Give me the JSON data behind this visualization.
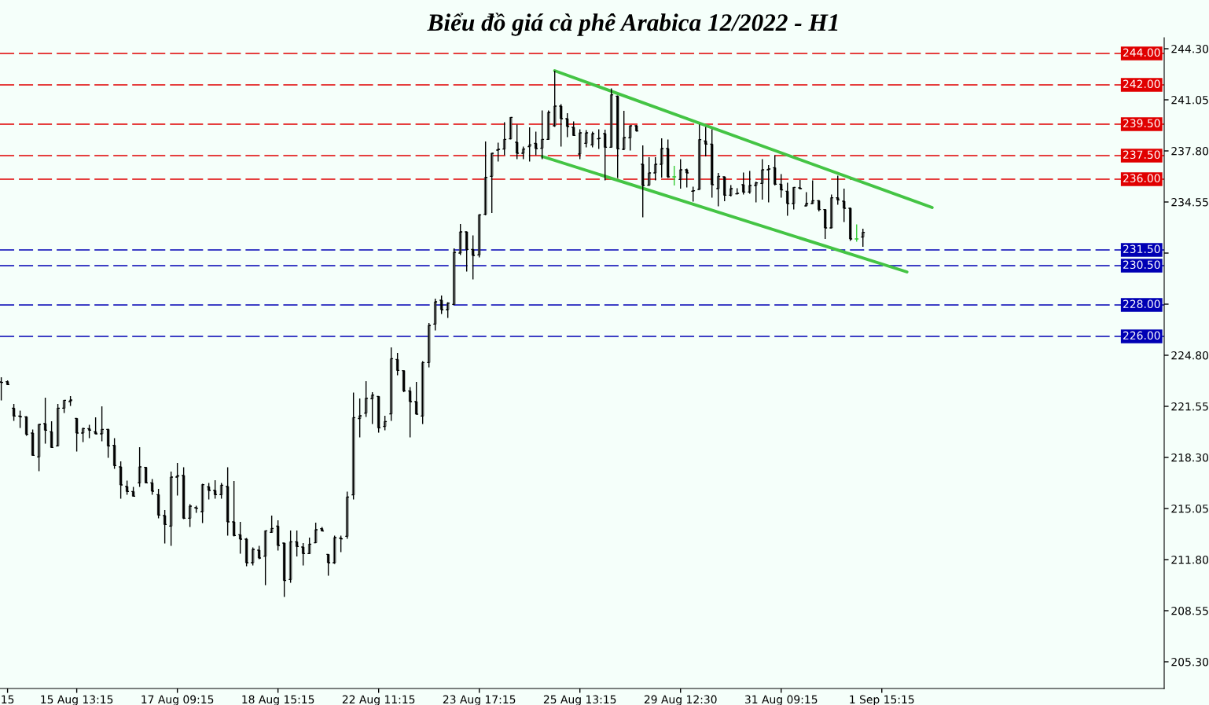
{
  "chart_data": {
    "type": "candlestick",
    "title": "Biểu đồ giá cà phê Arabica 12/2022 - H1",
    "categories": [
      null,
      "15",
      null,
      null,
      null,
      null,
      null,
      null,
      null,
      null,
      null,
      null,
      "15 Aug 13:15",
      null,
      null,
      null,
      null,
      null,
      null,
      null,
      null,
      null,
      null,
      null,
      null,
      null,
      null,
      null,
      "17 Aug 09:15",
      null,
      null,
      null,
      null,
      null,
      null,
      null,
      null,
      null,
      null,
      null,
      null,
      null,
      null,
      null,
      "18 Aug 15:15",
      null,
      null,
      null,
      null,
      null,
      null,
      null,
      null,
      null,
      null,
      null,
      null,
      null,
      null,
      null,
      "22 Aug 11:15",
      null,
      null,
      null,
      null,
      null,
      null,
      null,
      null,
      null,
      null,
      null,
      null,
      null,
      null,
      null,
      "23 Aug 17:15",
      null,
      null,
      null,
      null,
      null,
      null,
      null,
      null,
      null,
      null,
      null,
      null,
      null,
      null,
      null,
      "25 Aug 13:15",
      null,
      null,
      null,
      null,
      null,
      null,
      null,
      null,
      null,
      null,
      null,
      null,
      null,
      null,
      null,
      "29 Aug 12:30",
      null,
      null,
      null,
      null,
      null,
      null,
      null,
      null,
      null,
      null,
      null,
      null,
      null,
      null,
      null,
      "31 Aug 09:15",
      null,
      null,
      null,
      null,
      null,
      null,
      null,
      null,
      null,
      null,
      null,
      null,
      null,
      null,
      null,
      "1 Sep 15:15",
      null,
      null,
      null,
      null,
      null,
      null,
      null,
      null,
      null,
      null,
      null,
      null,
      null,
      null,
      null,
      null,
      null,
      null,
      null,
      null,
      null,
      null,
      null,
      null,
      null,
      null,
      null,
      null,
      null,
      null,
      null,
      null,
      null,
      null,
      null,
      null,
      null,
      null,
      null,
      null,
      null,
      null,
      null,
      null
    ],
    "ohlc": [
      [
        223.1,
        223.4,
        221.93,
        223.07
      ],
      [
        223.12,
        223.2,
        222.93,
        222.93
      ],
      [
        221.43,
        221.7,
        220.62,
        220.93
      ],
      [
        220.93,
        221.28,
        220.17,
        220.88
      ],
      [
        220.88,
        220.93,
        219.68,
        219.77
      ],
      [
        219.85,
        220.07,
        218.43,
        218.43
      ],
      [
        218.33,
        220.43,
        217.42,
        220.4
      ],
      [
        220.45,
        222.1,
        219.17,
        220.03
      ],
      [
        219.93,
        220.6,
        218.93,
        218.93
      ],
      [
        219.03,
        221.7,
        219.02,
        221.43
      ],
      [
        221.43,
        221.93,
        221.12,
        221.93
      ],
      [
        221.85,
        222.2,
        221.57,
        221.95
      ],
      [
        220.78,
        220.78,
        218.67,
        219.85
      ],
      [
        219.85,
        220.2,
        219.27,
        220.13
      ],
      [
        220.13,
        220.38,
        219.52,
        220.03
      ],
      [
        219.93,
        220.85,
        219.78,
        219.8
      ],
      [
        219.8,
        221.55,
        219.32,
        220.08
      ],
      [
        220.08,
        220.12,
        218.27,
        219.03
      ],
      [
        219.07,
        219.53,
        217.57,
        217.78
      ],
      [
        217.7,
        218.05,
        215.67,
        216.55
      ],
      [
        216.45,
        216.83,
        215.93,
        216.13
      ],
      [
        216.13,
        216.43,
        215.82,
        215.83
      ],
      [
        216.68,
        218.95,
        216.42,
        217.7
      ],
      [
        217.67,
        217.7,
        216.65,
        216.68
      ],
      [
        216.68,
        216.93,
        215.92,
        216.15
      ],
      [
        215.93,
        216.3,
        214.42,
        214.63
      ],
      [
        214.6,
        214.95,
        212.82,
        214.03
      ],
      [
        213.93,
        217.4,
        212.67,
        217.05
      ],
      [
        217.05,
        217.95,
        215.87,
        217.13
      ],
      [
        217.15,
        217.68,
        214.38,
        214.43
      ],
      [
        214.43,
        215.33,
        213.87,
        215.2
      ],
      [
        215.1,
        215.23,
        214.78,
        215.07
      ],
      [
        214.85,
        216.62,
        214.12,
        216.57
      ],
      [
        216.43,
        216.68,
        215.62,
        216.2
      ],
      [
        216.2,
        216.85,
        215.68,
        215.93
      ],
      [
        215.93,
        216.67,
        215.68,
        216.53
      ],
      [
        216.45,
        217.68,
        213.32,
        214.2
      ],
      [
        214.2,
        216.8,
        213.28,
        213.33
      ],
      [
        213.38,
        214.2,
        212.17,
        213.1
      ],
      [
        213.1,
        213.18,
        211.38,
        211.6
      ],
      [
        211.6,
        212.57,
        211.43,
        212.45
      ],
      [
        212.4,
        212.68,
        211.83,
        211.9
      ],
      [
        212.02,
        213.63,
        210.17,
        213.63
      ],
      [
        213.53,
        214.6,
        213.53,
        213.78
      ],
      [
        213.93,
        214.3,
        212.37,
        212.7
      ],
      [
        212.85,
        212.85,
        209.43,
        210.47
      ],
      [
        210.53,
        213.65,
        210.32,
        212.93
      ],
      [
        212.93,
        213.65,
        212.0,
        212.63
      ],
      [
        212.6,
        212.85,
        211.42,
        212.18
      ],
      [
        212.18,
        213.2,
        212.18,
        212.78
      ],
      [
        212.87,
        214.15,
        212.85,
        213.7
      ],
      [
        213.77,
        213.87,
        213.62,
        213.62
      ],
      [
        212.13,
        212.15,
        210.77,
        211.6
      ],
      [
        211.6,
        213.33,
        211.53,
        213.2
      ],
      [
        213.17,
        213.33,
        212.27,
        213.12
      ],
      [
        213.28,
        216.13,
        213.12,
        215.78
      ],
      [
        215.92,
        222.43,
        215.62,
        220.83
      ],
      [
        220.77,
        222.05,
        219.57,
        220.95
      ],
      [
        221.12,
        223.15,
        220.87,
        222.07
      ],
      [
        222.03,
        222.45,
        220.42,
        222.27
      ],
      [
        222.18,
        222.18,
        219.87,
        220.18
      ],
      [
        220.27,
        220.95,
        220.02,
        220.58
      ],
      [
        221.07,
        225.3,
        220.62,
        224.58
      ],
      [
        224.53,
        224.95,
        223.52,
        223.83
      ],
      [
        223.82,
        223.82,
        222.45,
        222.53
      ],
      [
        222.53,
        222.78,
        219.57,
        221.85
      ],
      [
        221.85,
        223.1,
        221.02,
        221.05
      ],
      [
        220.93,
        224.43,
        220.43,
        224.33
      ],
      [
        224.33,
        226.85,
        224.03,
        226.7
      ],
      [
        226.78,
        228.4,
        226.37,
        228.2
      ],
      [
        228.3,
        228.6,
        227.43,
        227.7
      ],
      [
        227.7,
        228.17,
        227.17,
        228.12
      ],
      [
        228.03,
        231.6,
        228.03,
        231.35
      ],
      [
        231.3,
        233.15,
        231.18,
        232.65
      ],
      [
        232.65,
        232.65,
        230.12,
        231.53
      ],
      [
        231.53,
        232.43,
        229.62,
        231.15
      ],
      [
        231.18,
        233.77,
        231.02,
        233.73
      ],
      [
        233.77,
        238.4,
        233.7,
        236.12
      ],
      [
        236.18,
        237.65,
        233.85,
        237.65
      ],
      [
        237.85,
        238.32,
        237.12,
        237.9
      ],
      [
        237.92,
        239.63,
        237.52,
        238.53
      ],
      [
        238.57,
        239.93,
        238.53,
        239.93
      ],
      [
        238.35,
        239.47,
        237.27,
        237.65
      ],
      [
        237.65,
        238.07,
        237.27,
        237.92
      ],
      [
        238.07,
        239.3,
        237.12,
        238.18
      ],
      [
        238.28,
        239.03,
        237.53,
        237.95
      ],
      [
        237.97,
        240.37,
        237.28,
        238.53
      ],
      [
        238.53,
        240.37,
        238.5,
        240.25
      ],
      [
        239.4,
        242.9,
        239.32,
        240.65
      ],
      [
        240.65,
        240.78,
        238.07,
        239.85
      ],
      [
        239.85,
        240.2,
        238.68,
        239.35
      ],
      [
        239.3,
        239.68,
        238.78,
        238.78
      ],
      [
        237.6,
        239.18,
        237.28,
        238.95
      ],
      [
        238.28,
        239.12,
        238.03,
        238.95
      ],
      [
        238.18,
        239.03,
        238.03,
        238.9
      ],
      [
        238.57,
        239.18,
        237.93,
        238.6
      ],
      [
        238.9,
        239.15,
        235.93,
        238.03
      ],
      [
        238.03,
        241.78,
        238.03,
        241.37
      ],
      [
        241.28,
        241.32,
        236.07,
        237.93
      ],
      [
        237.9,
        240.35,
        237.85,
        238.65
      ],
      [
        238.63,
        239.4,
        237.82,
        239.4
      ],
      [
        239.4,
        239.45,
        239.03,
        239.07
      ],
      [
        236.95,
        238.15,
        233.57,
        235.6
      ],
      [
        235.62,
        237.4,
        235.57,
        236.4
      ],
      [
        236.4,
        237.4,
        235.93,
        236.95
      ],
      [
        236.95,
        238.6,
        236.1,
        237.95
      ],
      [
        237.95,
        238.53,
        236.07,
        236.15
      ],
      [
        236.15,
        236.85,
        235.6,
        236.15
      ],
      [
        235.98,
        237.28,
        235.4,
        236.6
      ],
      [
        236.6,
        236.68,
        235.48,
        236.4
      ],
      [
        235.23,
        235.53,
        234.57,
        235.27
      ],
      [
        235.35,
        239.48,
        235.35,
        238.52
      ],
      [
        238.43,
        239.32,
        237.45,
        238.23
      ],
      [
        238.23,
        239.18,
        234.82,
        235.65
      ],
      [
        235.4,
        236.4,
        234.27,
        236.18
      ],
      [
        236.15,
        236.15,
        234.6,
        234.98
      ],
      [
        234.98,
        235.62,
        234.9,
        235.4
      ],
      [
        235.07,
        235.43,
        235.02,
        235.1
      ],
      [
        235.65,
        236.43,
        235.02,
        235.18
      ],
      [
        235.18,
        236.53,
        235.07,
        235.6
      ],
      [
        235.6,
        235.85,
        234.52,
        235.77
      ],
      [
        235.73,
        237.28,
        234.7,
        236.6
      ],
      [
        236.6,
        236.9,
        234.52,
        236.65
      ],
      [
        236.73,
        237.52,
        235.6,
        235.68
      ],
      [
        235.68,
        236.32,
        234.82,
        235.32
      ],
      [
        235.23,
        235.78,
        233.68,
        234.45
      ],
      [
        234.45,
        235.48,
        234.07,
        235.48
      ],
      [
        235.45,
        235.95,
        235.35,
        235.4
      ],
      [
        234.3,
        235.18,
        234.28,
        234.45
      ],
      [
        234.45,
        235.93,
        234.43,
        234.63
      ],
      [
        234.63,
        234.68,
        233.95,
        234.07
      ],
      [
        234.07,
        234.1,
        232.2,
        232.9
      ],
      [
        232.9,
        235.03,
        232.87,
        234.82
      ],
      [
        234.82,
        236.23,
        234.37,
        234.68
      ],
      [
        234.6,
        235.4,
        233.27,
        234.15
      ],
      [
        234.15,
        234.2,
        232.07,
        232.2
      ],
      [
        232.2,
        233.12,
        232.03,
        232.2
      ],
      [
        232.32,
        232.85,
        231.7,
        232.62
      ],
      null,
      null,
      null,
      null,
      null,
      null,
      null,
      null,
      null,
      null,
      null,
      null,
      null,
      null,
      null,
      null,
      null,
      null,
      null,
      null,
      null,
      null,
      null,
      null,
      null,
      null,
      null,
      null,
      null,
      null,
      null,
      null,
      null,
      null,
      null,
      null,
      null,
      null,
      null,
      null,
      null,
      null,
      null,
      null,
      null,
      null,
      null
    ],
    "colors": [
      "#000000",
      "#000000",
      "#000000",
      "#000000",
      "#000000",
      "#000000",
      "#000000",
      "#000000",
      "#000000",
      "#000000",
      "#000000",
      "#000000",
      "#000000",
      "#000000",
      "#000000",
      "#000000",
      "#000000",
      "#000000",
      "#000000",
      "#000000",
      "#000000",
      "#000000",
      "#000000",
      "#000000",
      "#000000",
      "#000000",
      "#000000",
      "#000000",
      "#000000",
      "#000000",
      "#000000",
      "#000000",
      "#000000",
      "#000000",
      "#000000",
      "#000000",
      "#000000",
      "#000000",
      "#000000",
      "#000000",
      "#000000",
      "#000000",
      "#000000",
      "#000000",
      "#000000",
      "#000000",
      "#000000",
      "#000000",
      "#000000",
      "#000000",
      "#000000",
      "#000000",
      "#000000",
      "#000000",
      "#000000",
      "#000000",
      "#000000",
      "#000000",
      "#000000",
      "#000000",
      "#000000",
      "#000000",
      "#000000",
      "#000000",
      "#000000",
      "#000000",
      "#000000",
      "#000000",
      "#000000",
      "#000000",
      "#000000",
      "#000000",
      "#000000",
      "#000000",
      "#000000",
      "#000000",
      "#000000",
      "#000000",
      "#000000",
      "#000000",
      "#000000",
      "#000000",
      "#000000",
      "#000000",
      "#000000",
      "#000000",
      "#000000",
      "#000000",
      "#000000",
      "#000000",
      "#000000",
      "#000000",
      "#000000",
      "#000000",
      "#000000",
      "#000000",
      "#000000",
      "#000000",
      "#000000",
      "#000000",
      "#000000",
      "#000000",
      "#000000",
      "#000000",
      "#000000",
      "#000000",
      "#000000",
      "#33cc33",
      "#000000",
      "#000000",
      "#000000",
      "#000000",
      "#000000",
      "#000000",
      "#000000",
      "#000000",
      "#000000",
      "#000000",
      "#000000",
      "#000000",
      "#000000",
      "#000000",
      "#000000",
      "#000000",
      "#000000",
      "#000000",
      "#000000",
      "#000000",
      "#000000",
      "#000000",
      "#000000",
      "#000000",
      "#000000",
      "#000000",
      "#000000",
      "#000000",
      "#33cc33",
      "#000000",
      null,
      null,
      null,
      null,
      null,
      null,
      null,
      null,
      null,
      null,
      null,
      null,
      null,
      null,
      null,
      null,
      null,
      null,
      null,
      null,
      null,
      null,
      null,
      null,
      null,
      null,
      null,
      null,
      null,
      null,
      null,
      null,
      null,
      null,
      null,
      null,
      null,
      null,
      null,
      null,
      null,
      null,
      null,
      null,
      null,
      null,
      null
    ],
    "series": [
      {
        "type": "line",
        "color": "#44c444",
        "values": [
          null,
          null,
          null,
          null,
          null,
          null,
          null,
          null,
          null,
          null,
          null,
          null,
          null,
          null,
          null,
          null,
          null,
          null,
          null,
          null,
          null,
          null,
          null,
          null,
          null,
          null,
          null,
          null,
          null,
          null,
          null,
          null,
          null,
          null,
          null,
          null,
          null,
          null,
          null,
          null,
          null,
          null,
          null,
          null,
          null,
          null,
          null,
          null,
          null,
          null,
          null,
          null,
          null,
          null,
          null,
          null,
          null,
          null,
          null,
          null,
          null,
          null,
          null,
          null,
          null,
          null,
          null,
          null,
          null,
          null,
          null,
          null,
          null,
          null,
          null,
          null,
          null,
          null,
          null,
          null,
          null,
          null,
          null,
          null,
          null,
          null,
          null,
          null,
          242.9,
          null,
          null,
          null,
          null,
          null,
          null,
          null,
          null,
          null,
          null,
          null,
          null,
          null,
          null,
          null,
          null,
          null,
          null,
          null,
          null,
          null,
          null,
          null,
          null,
          null,
          null,
          null,
          null,
          null,
          null,
          null,
          null,
          null,
          null,
          null,
          null,
          null,
          null,
          null,
          null,
          null,
          null,
          null,
          null,
          null,
          null,
          null,
          null,
          null,
          null,
          null,
          null,
          null,
          null,
          null,
          null,
          null,
          null,
          null,
          234.2,
          null,
          null,
          null,
          null,
          null,
          null,
          null,
          null,
          null,
          null,
          null,
          null,
          null,
          null,
          null,
          null,
          null,
          null,
          null,
          null,
          null,
          null,
          null,
          null,
          null,
          null,
          null,
          null,
          null,
          null,
          null,
          null,
          null,
          null,
          null,
          null
        ]
      },
      {
        "type": "line",
        "color": "#44c444",
        "values": [
          null,
          null,
          null,
          null,
          null,
          null,
          null,
          null,
          null,
          null,
          null,
          null,
          null,
          null,
          null,
          null,
          null,
          null,
          null,
          null,
          null,
          null,
          null,
          null,
          null,
          null,
          null,
          null,
          null,
          null,
          null,
          null,
          null,
          null,
          null,
          null,
          null,
          null,
          null,
          null,
          null,
          null,
          null,
          null,
          null,
          null,
          null,
          null,
          null,
          null,
          null,
          null,
          null,
          null,
          null,
          null,
          null,
          null,
          null,
          null,
          null,
          null,
          null,
          null,
          null,
          null,
          null,
          null,
          null,
          null,
          null,
          null,
          null,
          null,
          null,
          null,
          null,
          null,
          null,
          null,
          null,
          null,
          null,
          null,
          null,
          null,
          237.45,
          null,
          null,
          null,
          null,
          null,
          null,
          null,
          null,
          null,
          null,
          null,
          null,
          null,
          null,
          null,
          null,
          null,
          null,
          null,
          null,
          null,
          null,
          null,
          null,
          null,
          null,
          null,
          null,
          null,
          null,
          null,
          null,
          null,
          null,
          null,
          null,
          null,
          null,
          null,
          null,
          null,
          null,
          null,
          null,
          null,
          null,
          null,
          null,
          null,
          null,
          null,
          null,
          null,
          null,
          null,
          null,
          null,
          230.1,
          null,
          null,
          null,
          null,
          null,
          null,
          null,
          null,
          null,
          null,
          null,
          null,
          null,
          null,
          null,
          null,
          null,
          null,
          null,
          null,
          null,
          null,
          null,
          null,
          null,
          null,
          null,
          null,
          null,
          null,
          null,
          null,
          null,
          null,
          null,
          null,
          null,
          null,
          null,
          null
        ]
      }
    ],
    "ref_lines": [
      {
        "axis": "y",
        "value": 244,
        "label": "244.00",
        "color": "#e00000",
        "line_style": "dashed"
      },
      {
        "axis": "y",
        "value": 242,
        "label": "242.00",
        "color": "#e00000",
        "line_style": "dashed"
      },
      {
        "axis": "y",
        "value": 239.5,
        "label": "239.50",
        "color": "#e00000",
        "line_style": "dashed"
      },
      {
        "axis": "y",
        "value": 237.5,
        "label": "237.50",
        "color": "#e00000",
        "line_style": "dashed"
      },
      {
        "axis": "y",
        "value": 236,
        "label": "236.00",
        "color": "#e00000",
        "line_style": "dashed"
      },
      {
        "axis": "y",
        "value": 231.5,
        "label": "231.50",
        "color": "#0000b4",
        "line_style": "dashed"
      },
      {
        "axis": "y",
        "value": 230.5,
        "label": "230.50",
        "color": "#0000b4",
        "line_style": "dashed"
      },
      {
        "axis": "y",
        "value": 228,
        "label": "228.00",
        "color": "#0000b4",
        "line_style": "dashed"
      },
      {
        "axis": "y",
        "value": 226,
        "label": "226.00",
        "color": "#0000b4",
        "line_style": "dashed"
      }
    ],
    "ylim": [
      203.6,
      245.0
    ],
    "yticks": [
      {
        "value": 244.3,
        "label": "244.30"
      },
      241.05,
      {
        "value": 237.8,
        "label": "237.80"
      },
      234.55,
      {
        "value": 231.3,
        "label": null
      },
      {
        "value": 228.05,
        "label": null
      },
      {
        "value": 224.8,
        "label": "224.80"
      },
      221.55,
      {
        "value": 218.3,
        "label": "218.30"
      },
      215.05,
      {
        "value": 211.8,
        "label": "211.80"
      },
      208.55,
      {
        "value": 205.3,
        "label": "205.30"
      }
    ]
  }
}
